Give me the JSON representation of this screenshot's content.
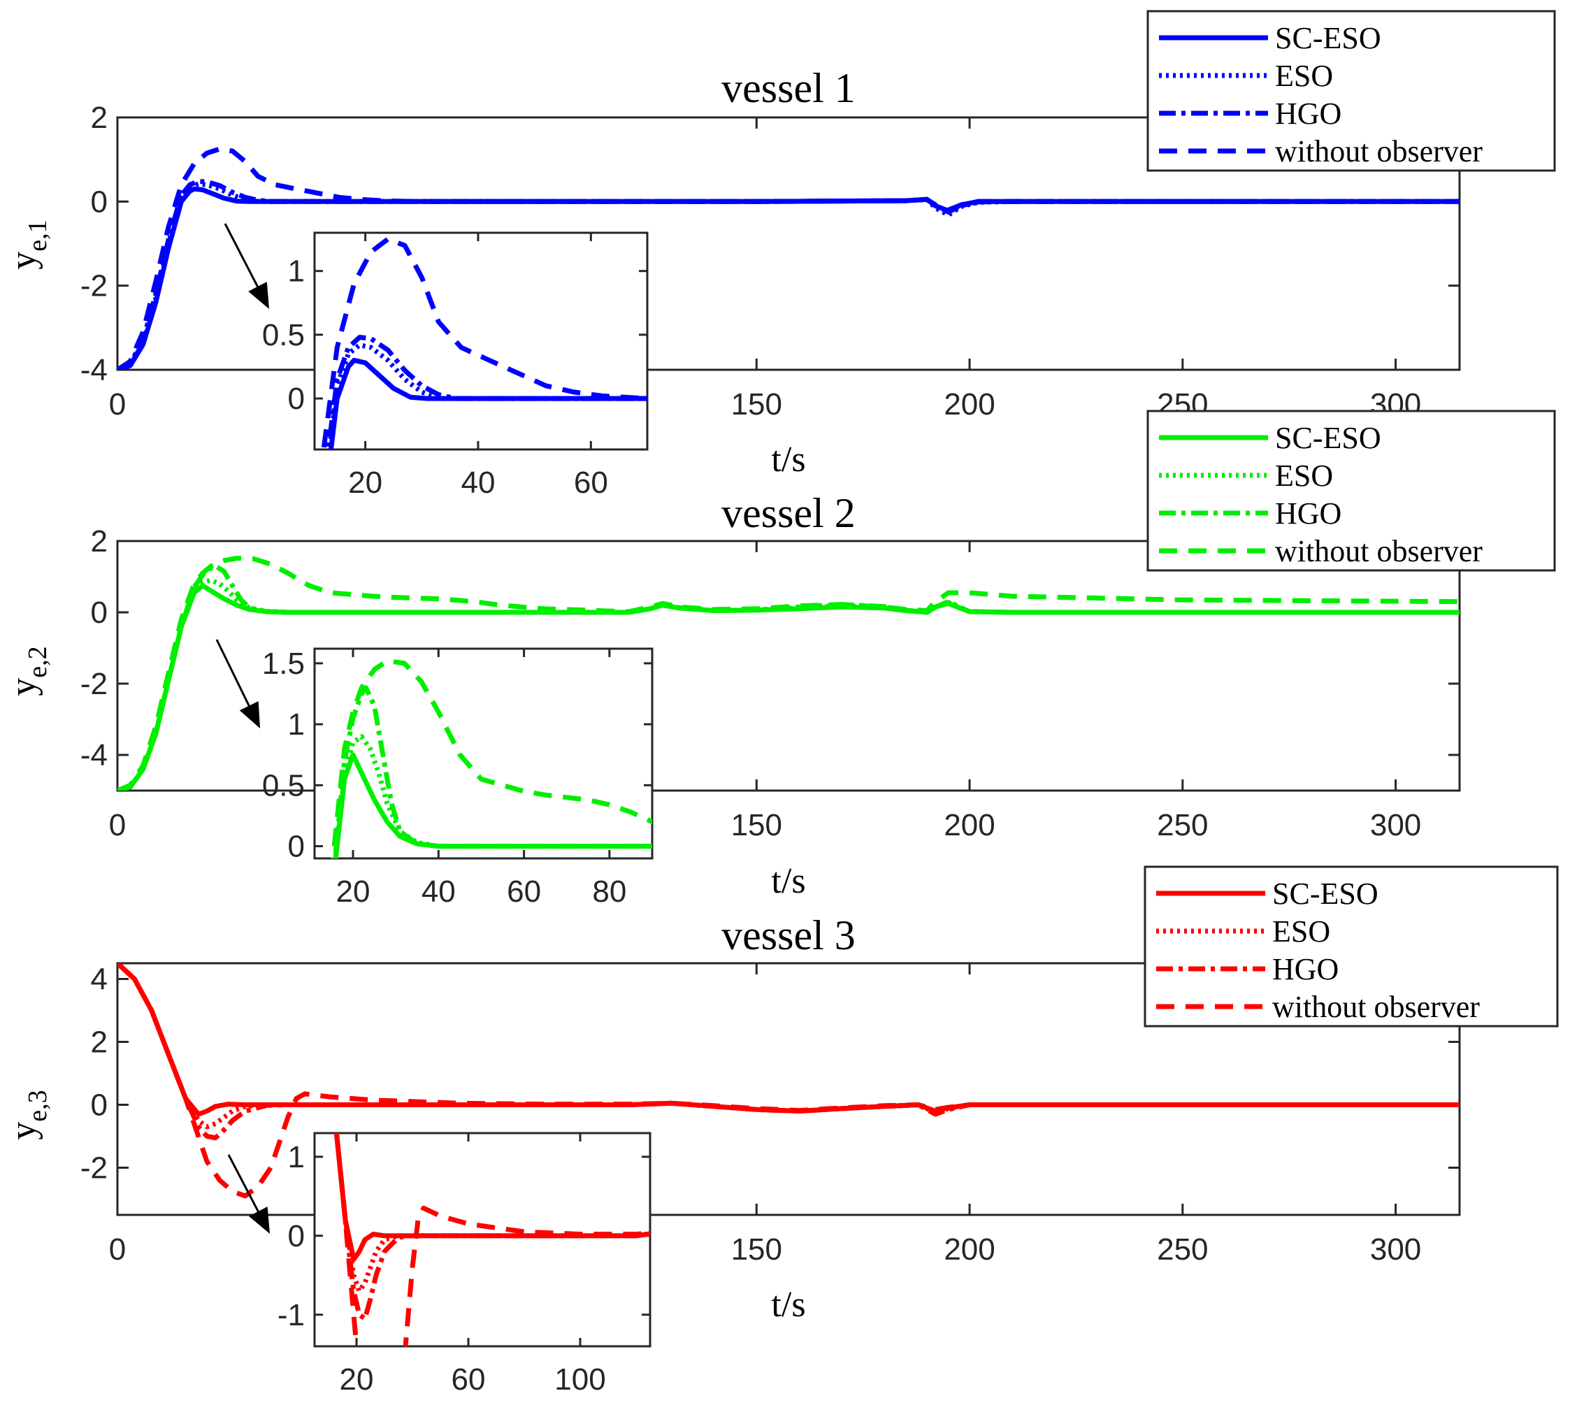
{
  "figure": {
    "x_label": "t/s",
    "legend_entries": [
      "SC-ESO",
      "ESO",
      "HGO",
      "without observer"
    ]
  },
  "chart_data": [
    {
      "type": "line",
      "title": "vessel 1",
      "ylabel_base": "y",
      "ylabel_sub": "e,1",
      "xlabel": "t/s",
      "xlim": [
        0,
        315
      ],
      "ylim": [
        -4,
        2
      ],
      "x_ticks": [
        0,
        150,
        200,
        250,
        300
      ],
      "y_ticks": [
        -4,
        -2,
        0,
        2
      ],
      "color": "#0000ff",
      "legend": [
        "SC-ESO",
        "ESO",
        "HGO",
        "without observer"
      ],
      "series": [
        {
          "name": "SC-ESO",
          "x": [
            0,
            3,
            6,
            9,
            12,
            15,
            17,
            18,
            20,
            22,
            25,
            28,
            31,
            35,
            40,
            50,
            100,
            150,
            185,
            190,
            192,
            195,
            198,
            202,
            210,
            250,
            315
          ],
          "y": [
            -4,
            -3.9,
            -3.4,
            -2.4,
            -1.1,
            0,
            0.25,
            0.3,
            0.28,
            0.2,
            0.08,
            0.01,
            0,
            0,
            0,
            0,
            0,
            0,
            0.02,
            0.05,
            -0.1,
            -0.22,
            -0.08,
            0,
            0,
            0,
            0
          ]
        },
        {
          "name": "ESO",
          "x": [
            0,
            3,
            6,
            9,
            12,
            15,
            17,
            19,
            21,
            24,
            27,
            30,
            33,
            40,
            50,
            100,
            150,
            185,
            190,
            192,
            195,
            198,
            202,
            210,
            250,
            315
          ],
          "y": [
            -4,
            -3.9,
            -3.35,
            -2.3,
            -1,
            0.1,
            0.35,
            0.42,
            0.4,
            0.3,
            0.15,
            0.05,
            0,
            0,
            0,
            0,
            0,
            0.02,
            0.05,
            -0.15,
            -0.32,
            -0.12,
            -0.02,
            0,
            0,
            0
          ]
        },
        {
          "name": "HGO",
          "x": [
            0,
            3,
            6,
            9,
            12,
            15,
            17,
            19,
            21,
            24,
            27,
            30,
            33,
            36,
            40,
            50,
            100,
            150,
            185,
            190,
            192,
            195,
            198,
            202,
            210,
            250,
            315
          ],
          "y": [
            -4,
            -3.85,
            -3.3,
            -2.2,
            -0.9,
            0.15,
            0.4,
            0.48,
            0.47,
            0.38,
            0.22,
            0.1,
            0.03,
            0,
            0,
            0,
            0,
            0,
            0.02,
            0.05,
            -0.1,
            -0.25,
            -0.1,
            -0.01,
            0,
            0,
            0
          ]
        },
        {
          "name": "without observer",
          "x": [
            0,
            3,
            6,
            9,
            12,
            15,
            18,
            21,
            24,
            27,
            30,
            33,
            37,
            42,
            47,
            52,
            57,
            62,
            70,
            100,
            150,
            185,
            190,
            192,
            195,
            198,
            202,
            210,
            250,
            315
          ],
          "y": [
            -4,
            -3.8,
            -3.1,
            -1.9,
            -0.6,
            0.4,
            0.9,
            1.15,
            1.25,
            1.2,
            0.95,
            0.6,
            0.4,
            0.3,
            0.2,
            0.1,
            0.05,
            0.02,
            0,
            0,
            0,
            0.02,
            0.05,
            -0.08,
            -0.2,
            -0.08,
            0,
            0,
            0,
            0
          ]
        }
      ]
    },
    {
      "type": "line",
      "title": "vessel 2",
      "ylabel_base": "y",
      "ylabel_sub": "e,2",
      "xlabel": "t/s",
      "xlim": [
        0,
        315
      ],
      "ylim": [
        -5,
        2
      ],
      "x_ticks": [
        0,
        150,
        200,
        250,
        300
      ],
      "y_ticks": [
        -4,
        -2,
        0,
        2
      ],
      "color": "#00ee00",
      "legend": [
        "SC-ESO",
        "ESO",
        "HGO",
        "without observer"
      ],
      "series": [
        {
          "name": "SC-ESO",
          "x": [
            0,
            3,
            6,
            9,
            12,
            15,
            18,
            20,
            22,
            25,
            28,
            31,
            35,
            40,
            60,
            100,
            120,
            125,
            128,
            132,
            140,
            150,
            160,
            170,
            180,
            185,
            190,
            192,
            195,
            200,
            210,
            250,
            315
          ],
          "y": [
            -5,
            -4.9,
            -4.4,
            -3.4,
            -1.9,
            -0.4,
            0.55,
            0.75,
            0.6,
            0.38,
            0.2,
            0.08,
            0.02,
            0,
            0,
            0,
            0,
            0.1,
            0.2,
            0.12,
            0.05,
            0.06,
            0.1,
            0.15,
            0.12,
            0.05,
            0,
            0.15,
            0.25,
            0.02,
            0,
            0,
            0
          ]
        },
        {
          "name": "ESO",
          "x": [
            0,
            3,
            6,
            9,
            12,
            15,
            18,
            20,
            22,
            24,
            26,
            28,
            31,
            35,
            40,
            60,
            100,
            120,
            125,
            128,
            132,
            140,
            150,
            160,
            170,
            180,
            185,
            190,
            192,
            195,
            200,
            210,
            250,
            315
          ],
          "y": [
            -5,
            -4.9,
            -4.4,
            -3.4,
            -1.9,
            -0.4,
            0.6,
            0.85,
            0.9,
            0.8,
            0.6,
            0.35,
            0.12,
            0.03,
            0,
            0,
            0,
            0,
            0.1,
            0.2,
            0.12,
            0.05,
            0.06,
            0.12,
            0.18,
            0.14,
            0.06,
            0,
            0.15,
            0.28,
            0.02,
            0,
            0,
            0
          ]
        },
        {
          "name": "HGO",
          "x": [
            0,
            3,
            6,
            9,
            12,
            15,
            18,
            20,
            22,
            23,
            25,
            27,
            29,
            31,
            35,
            40,
            60,
            100,
            120,
            125,
            128,
            132,
            140,
            150,
            160,
            170,
            180,
            185,
            190,
            192,
            195,
            200,
            210,
            250,
            315
          ],
          "y": [
            -5,
            -4.9,
            -4.4,
            -3.4,
            -1.9,
            -0.4,
            0.7,
            1.05,
            1.25,
            1.3,
            1.15,
            0.75,
            0.35,
            0.12,
            0.02,
            0,
            0,
            0,
            0,
            0.1,
            0.22,
            0.13,
            0.05,
            0.07,
            0.15,
            0.22,
            0.16,
            0.06,
            0,
            0.15,
            0.3,
            0.02,
            0,
            0,
            0
          ]
        },
        {
          "name": "without observer",
          "x": [
            0,
            3,
            6,
            9,
            12,
            15,
            18,
            20,
            22,
            25,
            28,
            32,
            36,
            40,
            45,
            50,
            55,
            60,
            65,
            70,
            75,
            80,
            85,
            90,
            100,
            120,
            125,
            128,
            132,
            140,
            150,
            160,
            170,
            180,
            185,
            190,
            192,
            195,
            200,
            210,
            250,
            315
          ],
          "y": [
            -5,
            -4.85,
            -4.3,
            -3.2,
            -1.7,
            -0.2,
            0.8,
            1.1,
            1.3,
            1.45,
            1.52,
            1.5,
            1.35,
            1.1,
            0.75,
            0.55,
            0.5,
            0.45,
            0.42,
            0.4,
            0.38,
            0.34,
            0.28,
            0.2,
            0.1,
            0.02,
            0.15,
            0.25,
            0.15,
            0.08,
            0.1,
            0.18,
            0.22,
            0.15,
            0.08,
            0.05,
            0.3,
            0.55,
            0.55,
            0.45,
            0.35,
            0.3
          ]
        }
      ]
    },
    {
      "type": "line",
      "title": "vessel 3",
      "ylabel_base": "y",
      "ylabel_sub": "e,3",
      "xlabel": "t/s",
      "xlim": [
        0,
        315
      ],
      "ylim": [
        -3.5,
        4.5
      ],
      "x_ticks": [
        0,
        150,
        200,
        250,
        300
      ],
      "y_ticks": [
        -2,
        0,
        2,
        4
      ],
      "color": "#ff0000",
      "legend": [
        "SC-ESO",
        "ESO",
        "HGO",
        "without observer"
      ],
      "series": [
        {
          "name": "SC-ESO",
          "x": [
            0,
            4,
            8,
            12,
            16,
            19,
            21,
            23,
            26,
            30,
            40,
            80,
            120,
            130,
            140,
            150,
            160,
            170,
            180,
            188,
            192,
            195,
            200,
            210,
            250,
            315
          ],
          "y": [
            4.5,
            4,
            3,
            1.6,
            0.2,
            -0.3,
            -0.2,
            -0.05,
            0.02,
            0,
            0,
            0,
            0,
            0.05,
            -0.05,
            -0.15,
            -0.2,
            -0.12,
            -0.05,
            0,
            -0.2,
            -0.1,
            0,
            0,
            0,
            0
          ]
        },
        {
          "name": "ESO",
          "x": [
            0,
            4,
            8,
            12,
            16,
            19,
            21,
            23,
            25,
            27,
            30,
            35,
            40,
            80,
            120,
            130,
            140,
            150,
            160,
            170,
            180,
            188,
            192,
            195,
            200,
            210,
            250,
            315
          ],
          "y": [
            4.5,
            4,
            3,
            1.6,
            0.2,
            -0.5,
            -0.7,
            -0.6,
            -0.4,
            -0.2,
            -0.05,
            0,
            0,
            0,
            0,
            0.05,
            -0.05,
            -0.15,
            -0.2,
            -0.12,
            -0.05,
            0,
            -0.25,
            -0.12,
            0,
            0,
            0,
            0
          ]
        },
        {
          "name": "HGO",
          "x": [
            0,
            4,
            8,
            12,
            16,
            19,
            21,
            23,
            25,
            27,
            30,
            35,
            40,
            80,
            120,
            130,
            140,
            150,
            160,
            170,
            180,
            188,
            192,
            195,
            200,
            210,
            250,
            315
          ],
          "y": [
            4.5,
            4,
            3,
            1.6,
            0.2,
            -0.7,
            -1,
            -1.05,
            -0.8,
            -0.5,
            -0.2,
            -0.02,
            0,
            0,
            0,
            0.05,
            -0.05,
            -0.15,
            -0.2,
            -0.12,
            -0.05,
            0,
            -0.3,
            -0.15,
            0,
            0,
            0,
            0
          ]
        },
        {
          "name": "without observer",
          "x": [
            0,
            4,
            8,
            12,
            16,
            19,
            21,
            24,
            27,
            30,
            33,
            36,
            38,
            40,
            42,
            44,
            47,
            50,
            55,
            60,
            70,
            80,
            100,
            120,
            130,
            140,
            150,
            160,
            170,
            180,
            188,
            192,
            195,
            200,
            210,
            250,
            315
          ],
          "y": [
            4.5,
            4,
            3,
            1.6,
            0.2,
            -1,
            -1.8,
            -2.4,
            -2.75,
            -2.9,
            -2.6,
            -2,
            -1.2,
            -0.4,
            0.2,
            0.35,
            0.3,
            0.25,
            0.2,
            0.15,
            0.1,
            0.05,
            0.02,
            0.02,
            0.05,
            -0.03,
            -0.12,
            -0.18,
            -0.1,
            -0.03,
            0,
            -0.15,
            -0.08,
            0,
            0,
            0,
            0
          ]
        }
      ]
    }
  ],
  "insets": [
    {
      "xlim": [
        11,
        70
      ],
      "ylim": [
        -0.4,
        1.3
      ],
      "x_ticks": [
        20,
        40,
        60
      ],
      "y_ticks": [
        0,
        0.5,
        1
      ],
      "y_tick_labels": [
        "0",
        "0.5",
        "1"
      ]
    },
    {
      "xlim": [
        11,
        90
      ],
      "ylim": [
        -0.1,
        1.62
      ],
      "x_ticks": [
        20,
        40,
        60,
        80
      ],
      "y_ticks": [
        0,
        0.5,
        1,
        1.5
      ],
      "y_tick_labels": [
        "0",
        "0.5",
        "1",
        "1.5"
      ]
    },
    {
      "xlim": [
        5,
        125
      ],
      "ylim": [
        -1.4,
        1.3
      ],
      "x_ticks": [
        20,
        60,
        100
      ],
      "y_ticks": [
        -1,
        0,
        1
      ],
      "y_tick_labels": [
        "-1",
        "0",
        "1"
      ]
    }
  ]
}
